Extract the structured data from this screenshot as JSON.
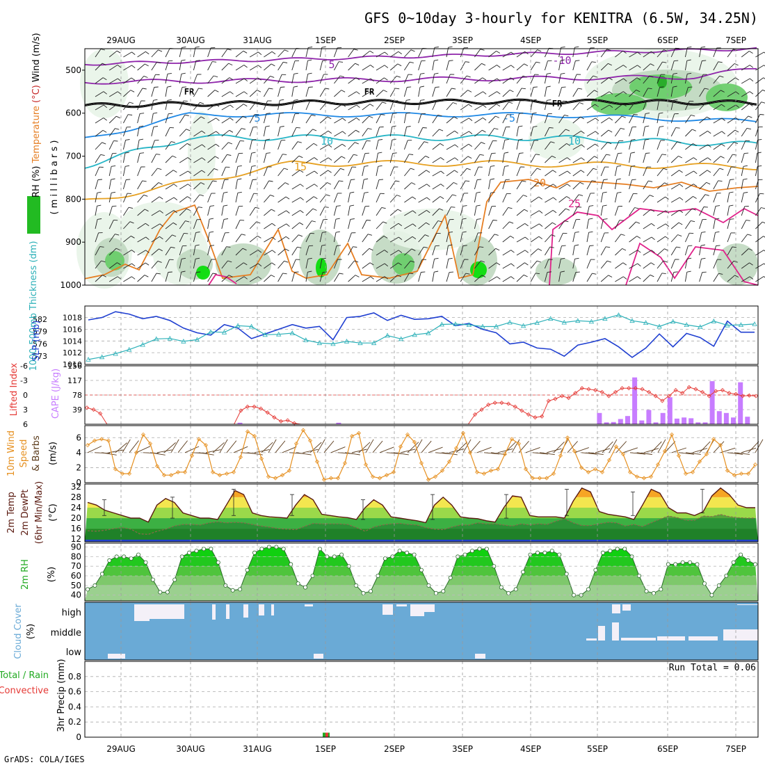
{
  "title": "GFS 0~10day 3-hourly for KENITRA (6.5W, 34.25N)",
  "footer": "GrADS: COLA/IGES",
  "date_labels": [
    "29AUG",
    "30AUG",
    "31AUG",
    "1SEP",
    "2SEP",
    "3SEP",
    "4SEP",
    "5SEP",
    "6SEP",
    "7SEP"
  ],
  "colors": {
    "rh_light": "#e8f4e8",
    "rh_mid": "#c0d8c0",
    "rh_green": "#66cc66",
    "rh_bright": "#00dd00",
    "temp_purple": "#8e24aa",
    "temp_fr": "#000000",
    "temp_blue": "#1e88e5",
    "temp_cyan": "#26b5c6",
    "temp_orange": "#e6a020",
    "temp_dark_orange": "#e67e22",
    "temp_magenta": "#e0218a",
    "slp": "#1f3fd1",
    "thickness": "#2bb0b8",
    "cape_bar": "#c77dff",
    "lifted_index": "#e53935",
    "wind_speed": "#e69020",
    "barbs": "#5a3a1a",
    "cloud_bg": "#6aaad6",
    "cloud_fill": "#f4f0f8"
  },
  "panels": {
    "pressure": {
      "yticks": [
        "500",
        "600",
        "700",
        "800",
        "900",
        "1000"
      ],
      "ylabel_parts": [
        {
          "text": "RH (%)",
          "color": "#000000"
        },
        {
          "text": "Temperature",
          "color": "#e67e22"
        },
        {
          "text": "(°C)",
          "color": "#c62828"
        },
        {
          "text": "Wind (m/s)",
          "color": "#000000"
        }
      ],
      "ylabel_right": "( m i l l i b a r s )",
      "contour_labels": [
        {
          "text": "-10",
          "color": "#8e24aa"
        },
        {
          "text": "5",
          "color": "#8e24aa"
        },
        {
          "text": "FR",
          "color": "#000000"
        },
        {
          "text": "-5",
          "color": "#1e88e5"
        },
        {
          "text": "10",
          "color": "#26b5c6"
        },
        {
          "text": "15",
          "color": "#e6a020"
        },
        {
          "text": "20",
          "color": "#e67e22"
        },
        {
          "text": "25",
          "color": "#e0218a"
        }
      ]
    },
    "slp": {
      "ylabel_left": "1000-500mb Thickness (dm)",
      "ylabel_right": "SLP (mb)",
      "thickness_ticks": [
        "582",
        "579",
        "576",
        "573"
      ],
      "slp_ticks": [
        "1018",
        "1016",
        "1014",
        "1012",
        "1010"
      ]
    },
    "cape": {
      "ylabel_left": "Lifted Index",
      "ylabel_right": "CAPE (J/kg)",
      "li_ticks": [
        "-6",
        "-3",
        "0",
        "3",
        "6"
      ],
      "cape_ticks": [
        "156",
        "117",
        "78",
        "39"
      ]
    },
    "wind": {
      "ylabel_parts": [
        "10m Wind",
        "Speed",
        "& Barbs",
        "(m/s)"
      ],
      "ticks": [
        "6",
        "4",
        "2",
        "0"
      ]
    },
    "temp": {
      "ylabel_parts": [
        "2m Temp",
        "2m DewPt",
        "(6hr Min/Max)",
        "(°C)"
      ],
      "ticks": [
        "32",
        "28",
        "24",
        "20",
        "16",
        "12"
      ]
    },
    "rh": {
      "ylabel": "2m RH",
      "unit": "(%)",
      "ticks": [
        "90",
        "80",
        "70",
        "60",
        "50",
        "40"
      ]
    },
    "cloud": {
      "ylabel": "Cloud Cover",
      "unit": "(%)",
      "levels": [
        "high",
        "middle",
        "low"
      ]
    },
    "precip": {
      "ylabel": "3hr Precip (mm)",
      "legend_total": "Total / Rain",
      "legend_convective": "Convective",
      "run_total": "Run Total = 0.06",
      "ticks": [
        "0.8",
        "0.6",
        "0.4",
        "0.2",
        "0"
      ],
      "full_ticks": [
        "0.8",
        "0.6",
        "0.4",
        "0.2",
        "0"
      ]
    }
  },
  "chart_data": [
    {
      "type": "line",
      "title": "GFS 0~10day 3-hourly for KENITRA (6.5W, 34.25N)",
      "panel": "sea level pressure and 1000-500mb thickness",
      "x_start": "28AUG 12Z",
      "x_step_hours": 6,
      "series": [
        {
          "name": "SLP (mb)",
          "values": [
            1017.6,
            1018.0,
            1019.0,
            1018.6,
            1017.8,
            1018.2,
            1017.5,
            1016.2,
            1015.4,
            1015.0,
            1016.8,
            1016.2,
            1014.4,
            1015.2,
            1016.0,
            1016.8,
            1016.2,
            1016.5,
            1014.2,
            1018.0,
            1018.2,
            1018.8,
            1017.5,
            1018.4,
            1017.7,
            1017.8,
            1018.2,
            1016.6,
            1017.0,
            1016.0,
            1015.4,
            1013.5,
            1013.8,
            1012.8,
            1012.6,
            1011.4,
            1013.3,
            1013.8,
            1014.4,
            1013.0,
            1011.2,
            1012.8,
            1015.2,
            1013.0,
            1015.3,
            1014.6,
            1013.1,
            1017.4,
            1015.5,
            1015.5
          ]
        },
        {
          "name": "1000-500mb Thickness (dm)",
          "values": [
            572.2,
            572.8,
            573.6,
            574.6,
            575.8,
            577.2,
            577.3,
            576.6,
            577.0,
            578.9,
            578.8,
            580.4,
            580.2,
            578.2,
            578.3,
            578.6,
            576.9,
            576.2,
            576.0,
            576.6,
            576.2,
            576.2,
            578.0,
            577.2,
            578.2,
            578.6,
            580.7,
            580.8,
            580.6,
            580.2,
            580.2,
            581.2,
            580.4,
            581.1,
            582.1,
            581.2,
            581.6,
            581.4,
            582.1,
            583.0,
            581.6,
            581.1,
            580.2,
            581.4,
            580.6,
            580.1,
            581.5,
            580.5,
            580.6,
            580.8
          ]
        }
      ],
      "ylim_slp": [
        1010,
        1020
      ],
      "ylim_thickness": [
        571,
        585
      ]
    },
    {
      "type": "bar",
      "panel": "CAPE and lifted index",
      "x_start": "28AUG 12Z",
      "x_step_hours": 3,
      "cape_values": [
        0,
        0,
        0,
        0,
        0,
        0,
        0,
        0,
        0,
        0,
        0,
        0,
        0,
        0,
        0,
        0,
        0,
        0,
        0,
        0,
        3,
        0,
        0,
        0,
        0,
        0,
        0,
        0,
        0,
        0,
        0,
        0,
        0,
        0,
        0,
        0,
        0,
        0,
        0,
        0,
        0,
        0,
        0,
        0,
        0,
        0,
        3,
        0,
        0,
        0,
        0,
        0,
        0,
        0,
        0,
        0,
        0,
        0,
        0,
        0,
        0,
        0,
        0,
        0,
        0,
        0,
        0,
        0,
        0,
        0,
        0,
        0,
        0,
        0,
        0,
        0,
        0,
        0,
        0,
        0,
        0,
        0,
        0,
        0,
        0,
        0,
        0,
        0,
        0,
        0,
        0,
        0,
        0,
        0,
        0,
        0,
        0,
        0,
        0,
        0,
        0,
        0,
        0,
        0,
        30,
        0,
        0,
        0,
        0,
        0,
        0,
        0,
        0,
        0,
        0,
        0,
        0,
        0,
        0,
        0,
        0,
        0,
        0,
        0,
        0,
        0,
        0,
        0,
        0,
        0,
        0,
        0,
        0,
        0,
        0,
        0,
        0,
        0,
        0,
        0,
        0,
        0,
        0,
        0,
        0,
        0,
        0,
        0,
        0,
        0,
        0,
        0,
        0,
        0,
        0,
        0,
        0,
        0,
        0,
        0,
        0,
        0,
        0,
        0,
        0,
        0,
        0,
        0,
        0,
        0,
        0,
        0,
        0,
        0,
        0,
        0,
        0,
        0,
        0,
        0,
        0,
        0,
        0,
        0,
        0,
        0,
        0,
        0,
        0,
        0,
        0,
        0,
        0,
        0,
        0,
        0,
        0,
        0,
        0,
        0,
        0,
        0,
        0,
        0,
        0,
        0,
        0,
        0,
        0,
        0,
        0,
        0,
        0,
        0,
        0,
        0,
        0,
        0,
        0,
        0,
        0,
        0,
        0,
        0,
        0,
        0,
        0,
        0,
        0,
        0,
        0,
        0,
        0,
        0,
        0,
        0,
        0,
        0,
        0,
        0,
        0,
        0,
        0,
        0,
        0,
        0,
        0,
        0,
        0,
        0,
        0,
        0,
        0,
        0,
        0,
        0,
        0,
        0
      ],
      "cape_bars": [
        {
          "t": 22,
          "v": 4
        },
        {
          "t": 36,
          "v": 4
        },
        {
          "t": 73,
          "v": 30
        },
        {
          "t": 74,
          "v": 5
        },
        {
          "t": 75,
          "v": 6
        },
        {
          "t": 76,
          "v": 14
        },
        {
          "t": 77,
          "v": 22
        },
        {
          "t": 78,
          "v": 125
        },
        {
          "t": 79,
          "v": 10
        },
        {
          "t": 80,
          "v": 38
        },
        {
          "t": 81,
          "v": 5
        },
        {
          "t": 82,
          "v": 30
        },
        {
          "t": 83,
          "v": 72
        },
        {
          "t": 84,
          "v": 15
        },
        {
          "t": 85,
          "v": 18
        },
        {
          "t": 86,
          "v": 16
        },
        {
          "t": 87,
          "v": 5
        },
        {
          "t": 88,
          "v": 5
        },
        {
          "t": 89,
          "v": 115
        },
        {
          "t": 90,
          "v": 35
        },
        {
          "t": 91,
          "v": 30
        },
        {
          "t": 92,
          "v": 18
        },
        {
          "t": 93,
          "v": 112
        },
        {
          "t": 94,
          "v": 20
        }
      ],
      "lifted_index": [
        2.6,
        3.0,
        3.8,
        6.0,
        6.0,
        6.0,
        6.0,
        6.0,
        6.0,
        6.0,
        6.0,
        6.0,
        6.0,
        6.0,
        6.0,
        6.0,
        6.0,
        6.0,
        6.0,
        6.0,
        6.0,
        6.0,
        6.0,
        3.2,
        2.4,
        2.4,
        2.8,
        3.6,
        4.6,
        5.4,
        5.2,
        5.8,
        6.0,
        6.0,
        6.0,
        6.0,
        6.0,
        6.0,
        6.0,
        6.0,
        6.0,
        6.0,
        6.0,
        6.0,
        6.0,
        6.0,
        6.0,
        6.0,
        6.0,
        6.0,
        6.0,
        6.0,
        6.0,
        6.0,
        6.0,
        6.0,
        6.0,
        6.0,
        4.0,
        3.0,
        2.0,
        1.6,
        1.6,
        1.8,
        2.4,
        3.2,
        4.0,
        4.6,
        4.4,
        1.2,
        0.8,
        0.2,
        0.6,
        -0.4,
        -1.4,
        -1.2,
        -1.0,
        -0.6,
        0.2,
        -0.6,
        -1.4,
        -1.4,
        -1.4,
        -1.2,
        -0.6,
        0.2,
        1.2,
        0.2,
        -1.0,
        -0.4,
        -1.6,
        -1.2,
        -0.6,
        0.2,
        -0.8,
        -1.0,
        -0.4,
        -0.2,
        0.2,
        0.1,
        0.2
      ],
      "ylim_li": [
        6,
        -6
      ],
      "ylim_cape": [
        0,
        156
      ]
    },
    {
      "type": "line",
      "panel": "10m wind speed",
      "x_start": "28AUG 12Z",
      "x_step_hours": 3,
      "values": [
        5.0,
        5.6,
        5.8,
        5.6,
        1.8,
        1.2,
        1.2,
        4.0,
        6.4,
        5.2,
        2.2,
        1.0,
        1.0,
        1.4,
        1.4,
        3.6,
        5.8,
        5.0,
        1.4,
        1.0,
        1.2,
        1.4,
        3.4,
        6.8,
        6.2,
        3.2,
        0.8,
        0.6,
        1.0,
        1.6,
        5.2,
        7.0,
        5.6,
        2.8,
        0.4,
        0.6,
        0.6,
        2.6,
        6.2,
        6.6,
        2.4,
        0.8,
        0.6,
        1.0,
        1.4,
        4.8,
        6.4,
        5.4,
        2.6,
        0.4,
        0.8,
        1.6,
        2.8,
        4.6,
        6.6,
        4.0,
        1.4,
        1.2,
        1.6,
        1.8,
        3.8,
        5.8,
        5.2,
        1.8,
        0.6,
        0.6,
        0.6,
        1.2,
        3.6,
        6.0,
        4.2,
        2.0,
        1.4,
        1.8,
        1.4,
        3.0,
        4.8,
        3.8,
        1.4,
        0.8,
        0.6,
        0.8,
        2.4,
        4.2,
        6.4,
        3.6,
        1.2,
        1.4,
        2.8,
        3.8,
        5.8,
        5.0,
        1.6,
        1.0,
        1.2,
        1.2,
        2.4
      ]
    },
    {
      "type": "area",
      "panel": "2m temperature and dew point",
      "x_start": "28AUG 12Z",
      "x_step_hours": 3,
      "temperature": [
        26,
        25,
        23,
        22,
        21,
        20,
        20,
        18.5,
        25,
        27.5,
        26,
        22,
        21,
        20,
        20,
        19.5,
        25,
        30.5,
        29,
        22,
        21,
        20.5,
        20.3,
        20,
        25,
        29,
        27,
        21.5,
        21,
        20.5,
        20.2,
        19.5,
        24,
        27,
        25,
        20.5,
        20,
        19.5,
        19,
        18.3,
        25,
        28,
        25,
        20.5,
        20,
        19.8,
        19,
        18.5,
        24,
        28.5,
        28,
        21,
        20.5,
        20.5,
        20.5,
        20,
        26.5,
        31.5,
        30,
        22.5,
        21.5,
        21,
        20.5,
        19.5,
        25,
        31,
        29.5,
        24,
        22,
        22,
        21,
        22.5,
        28.5,
        31.5,
        29,
        25,
        24,
        24
      ],
      "dewpoint": [
        15.2,
        15.0,
        15.4,
        16.0,
        16.4,
        15.8,
        14.0,
        13.8,
        15.0,
        15.8,
        17.0,
        17.6,
        17.6,
        17.4,
        18.2,
        18.6,
        18.2,
        18.4,
        18.2,
        17.6,
        17.0,
        16.6,
        16.0,
        15.8,
        15.6,
        16.8,
        18.0,
        17.8,
        17.8,
        17.8,
        17.6,
        16.4,
        15.0,
        16.6,
        17.4,
        17.8,
        18.0,
        17.6,
        17.4,
        16.4,
        15.8,
        15.6,
        16.6,
        17.4,
        17.4,
        18.2,
        17.8,
        17.8,
        17.4,
        17.0,
        17.8,
        17.4,
        17.8,
        17.6,
        18.8,
        19.8,
        18.2,
        17.2,
        17.2,
        17.8,
        18.4,
        18.2,
        17.0,
        17.6,
        16.8,
        18.2,
        19.6,
        20.8,
        20.2,
        19.2,
        19.2,
        20.8,
        20.6,
        21.4,
        20.6,
        20.2,
        20.0,
        20.0
      ],
      "ylim": [
        11,
        33
      ]
    },
    {
      "type": "area",
      "panel": "2m relative humidity",
      "x_start": "28AUG 12Z",
      "x_step_hours": 3,
      "values": [
        46,
        50,
        62,
        76,
        80,
        80,
        78,
        82,
        74,
        56,
        43,
        43,
        56,
        80,
        84,
        86,
        88,
        88,
        74,
        50,
        45,
        46,
        66,
        84,
        88,
        90,
        90,
        88,
        72,
        52,
        48,
        60,
        88,
        80,
        80,
        82,
        70,
        50,
        42,
        44,
        60,
        78,
        80,
        86,
        84,
        82,
        66,
        50,
        42,
        44,
        58,
        80,
        82,
        86,
        88,
        88,
        70,
        48,
        42,
        46,
        64,
        82,
        84,
        84,
        86,
        82,
        62,
        40,
        40,
        46,
        66,
        84,
        86,
        88,
        88,
        80,
        60,
        44,
        42,
        46,
        72,
        72,
        74,
        74,
        72,
        52,
        40,
        50,
        60,
        74,
        82,
        76,
        72
      ]
    },
    {
      "type": "line",
      "panel": "3hr precipitation",
      "run_total": 0.06,
      "bars": [
        {
          "date": "1SEP 00Z",
          "total": 0.06,
          "convective": 0.06
        }
      ],
      "ylim": [
        0,
        1.0
      ]
    }
  ]
}
